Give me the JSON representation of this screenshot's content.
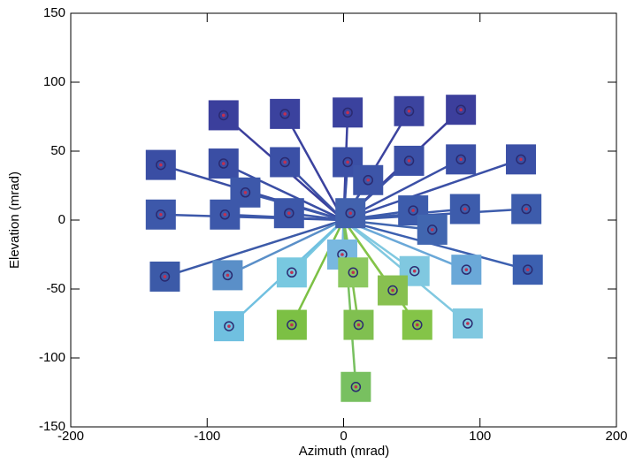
{
  "chart_data": {
    "type": "scatter",
    "x_label": "Azimuth (mrad)",
    "y_label": "Elevation (mrad)",
    "xlim": [
      -200,
      200
    ],
    "xticks": [
      -200,
      -100,
      0,
      100,
      200
    ],
    "ylim": [
      -150,
      150
    ],
    "yticks": [
      -150,
      -100,
      -50,
      0,
      50,
      100,
      150
    ],
    "x": [
      -88,
      -43,
      3,
      48,
      86,
      -134,
      -88,
      -43,
      3,
      18,
      48,
      86,
      130,
      -72,
      -134,
      -87,
      -40,
      5,
      51,
      89,
      134,
      65,
      -131,
      -85,
      -38,
      -1,
      7,
      52,
      90,
      135,
      36,
      -84,
      -38,
      11,
      54,
      91,
      9
    ],
    "values": [
      76,
      77,
      78,
      79,
      80,
      40,
      41,
      42,
      42,
      29,
      43,
      44,
      44,
      20,
      4,
      4,
      5,
      5,
      7,
      8,
      8,
      -7,
      -41,
      -40,
      -38,
      -25,
      -38,
      -37,
      -36,
      -36,
      -51,
      -77,
      -76,
      -76,
      -76,
      -75,
      -121
    ],
    "colors": [
      "#3b3f9c",
      "#3b429e",
      "#3b429e",
      "#3c449f",
      "#3c3f9c",
      "#3a4ea4",
      "#3a4ea4",
      "#3b50a6",
      "#3b50a6",
      "#3d55a8",
      "#3b50a6",
      "#3b50a6",
      "#3b50a6",
      "#3d58aa",
      "#3d58aa",
      "#3d58aa",
      "#3d58aa",
      "#4262ae",
      "#3d5cac",
      "#3d5cac",
      "#3d5cac",
      "#4166b0",
      "#3c5aa8",
      "#5a8fc8",
      "#78c8e0",
      "#78b8e0",
      "#8cc860",
      "#80c8e0",
      "#6aa8d8",
      "#3c60b0",
      "#88c050",
      "#70c0e0",
      "#7cc044",
      "#80c050",
      "#84c448",
      "#80c8e0",
      "#78c060"
    ]
  }
}
